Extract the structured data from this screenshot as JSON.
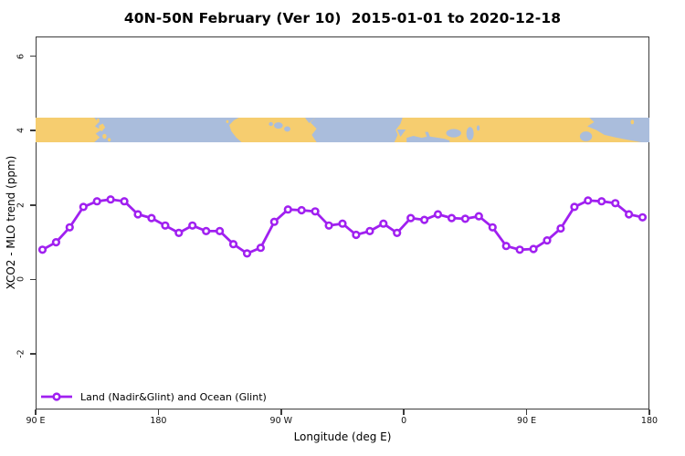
{
  "title": "40N-50N February (Ver 10)  2015-01-01 to 2020-12-18",
  "axes": {
    "x": {
      "label": "Longitude (deg E)",
      "ticks": [
        {
          "pos": 90,
          "label": "90 E"
        },
        {
          "pos": 180,
          "label": "180"
        },
        {
          "pos": 270,
          "label": "90 W"
        },
        {
          "pos": 360,
          "label": "0"
        },
        {
          "pos": 450,
          "label": "90 E"
        },
        {
          "pos": 540,
          "label": "180"
        }
      ]
    },
    "y": {
      "label": "XCO2 - MLO trend (ppm)",
      "ticks": [
        6,
        4,
        2,
        0,
        -2
      ]
    }
  },
  "legend": {
    "label": "Land (Nadir&Glint) and Ocean (Glint)"
  },
  "colors": {
    "accent": "#A020F0",
    "land": "#F6CD6F",
    "ocean": "#AABDDC",
    "frame": "#3c3c3c"
  },
  "chart_data": {
    "type": "line",
    "title": "40N-50N February (Ver 10)  2015-01-01 to 2020-12-18",
    "xlabel": "Longitude (deg E)",
    "ylabel": "XCO2 - MLO trend (ppm)",
    "xlim": [
      90,
      540
    ],
    "ylim": [
      -3.5,
      6.53
    ],
    "x_tick_positions": [
      90,
      180,
      270,
      360,
      450,
      540
    ],
    "x_tick_labels": [
      "90 E",
      "180",
      "90 W",
      "0",
      "90 E",
      "180"
    ],
    "y_ticks": [
      -2,
      0,
      2,
      4,
      6
    ],
    "grid": false,
    "legend_position": "bottom-left",
    "marker": "open-circle",
    "map_band": {
      "center_y": 4.0,
      "half_height": 0.33,
      "content": "world coastline strip 40N-50N, land vs ocean"
    },
    "series": [
      {
        "name": "Land (Nadir&Glint) and Ocean (Glint)",
        "x": [
          95,
          105,
          115,
          125,
          135,
          145,
          155,
          165,
          175,
          185,
          195,
          205,
          215,
          225,
          235,
          245,
          255,
          265,
          275,
          285,
          295,
          305,
          315,
          325,
          335,
          345,
          355,
          365,
          375,
          385,
          395,
          405,
          415,
          425,
          435,
          445,
          455,
          465,
          475,
          485,
          495,
          505,
          515,
          525,
          535
        ],
        "y": [
          0.8,
          1.0,
          1.4,
          1.95,
          2.1,
          2.15,
          2.1,
          1.75,
          1.65,
          1.45,
          1.25,
          1.45,
          1.3,
          1.3,
          0.95,
          0.7,
          0.85,
          1.55,
          1.88,
          1.86,
          1.83,
          1.45,
          1.5,
          1.2,
          1.3,
          1.5,
          1.25,
          1.65,
          1.6,
          1.75,
          1.65,
          1.63,
          1.7,
          1.4,
          0.9,
          0.8,
          0.82,
          1.05,
          1.37,
          1.95,
          2.12,
          2.1,
          2.05,
          1.75,
          1.67
        ]
      }
    ]
  }
}
